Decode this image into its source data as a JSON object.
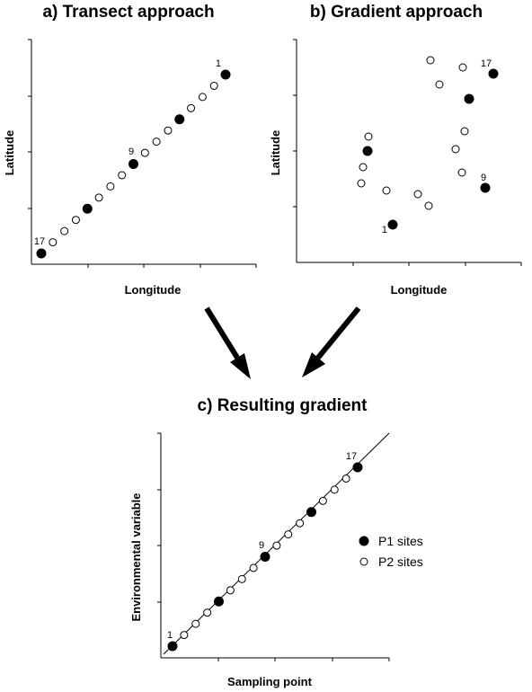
{
  "panels": {
    "a": {
      "title": "a) Transect approach",
      "xlabel": "Longitude",
      "ylabel": "Latitude",
      "labels": {
        "first": "1",
        "middle": "9",
        "last": "17"
      }
    },
    "b": {
      "title": "b) Gradient approach",
      "xlabel": "Longitude",
      "ylabel": "Latitude",
      "labels": {
        "first": "1",
        "middle": "9",
        "last": "17"
      }
    },
    "c": {
      "title": "c) Resulting gradient",
      "xlabel": "Sampling point",
      "ylabel": "Environmental variable",
      "labels": {
        "first": "1",
        "middle": "9",
        "last": "17"
      }
    }
  },
  "legend": {
    "p1": "P1 sites",
    "p2": "P2 sites"
  },
  "colors": {
    "ink": "#000000",
    "background": "#ffffff"
  },
  "arrows": [
    "arrow-from-a-to-c",
    "arrow-from-b-to-c"
  ]
}
